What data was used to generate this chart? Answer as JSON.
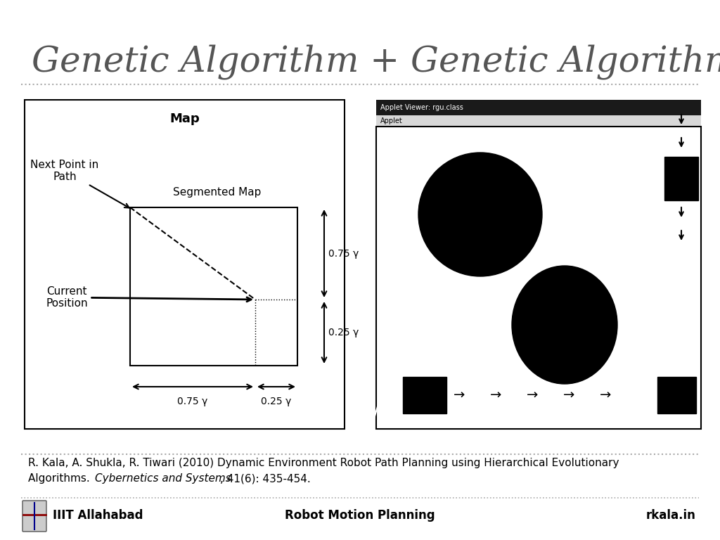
{
  "title": "Genetic Algorithm + Genetic Algorithm",
  "title_fontsize": 36,
  "title_color": "#555555",
  "bg_color": "#ffffff",
  "separator_color": "#aaaaaa",
  "ref_text_line1": "R. Kala, A. Shukla, R. Tiwari (2010) Dynamic Environment Robot Path Planning using Hierarchical Evolutionary",
  "ref_text_line2": "Algorithms. Cybernetics and Systems, 41(6): 435-454.",
  "footer_left": "IIIT Allahabad",
  "footer_center": "Robot Motion Planning",
  "footer_right": "rkala.in",
  "map_title": "Map",
  "map_label_segmented": "Segmented Map",
  "map_label_next": "Next Point in\nPath",
  "map_label_current": "Current\nPosition",
  "map_label_075_x": "0.75 γ",
  "map_label_025_x": "0.25 γ",
  "map_label_075_y": "0.75 γ",
  "map_label_025_y": "0.25 γ",
  "applet_title": "Applet Viewer: rgu.class",
  "applet_sub": "Applet"
}
